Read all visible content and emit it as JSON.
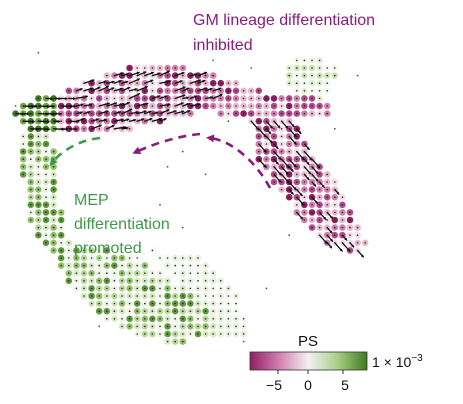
{
  "chart_data": {
    "type": "scatter",
    "description_free": true,
    "annotations": [
      {
        "id": "gm",
        "lines": [
          "GM lineage differentiation",
          "inhibited"
        ],
        "color": "#8b1a7e"
      },
      {
        "id": "mep",
        "lines": [
          "MEP",
          "differentiation",
          "promoted"
        ],
        "color": "#3e9a48"
      }
    ],
    "colorbar": {
      "label": "PS",
      "ticks": [
        "−5",
        "0",
        "5"
      ],
      "tick_values": [
        -5,
        0,
        5
      ],
      "range": [
        -9,
        9
      ],
      "scale_label": "1 × 10",
      "scale_exponent": "−3",
      "colors": {
        "negative": "#8e1f63",
        "neutral": "#f2f2f2",
        "positive": "#3f7a1f"
      }
    }
  }
}
